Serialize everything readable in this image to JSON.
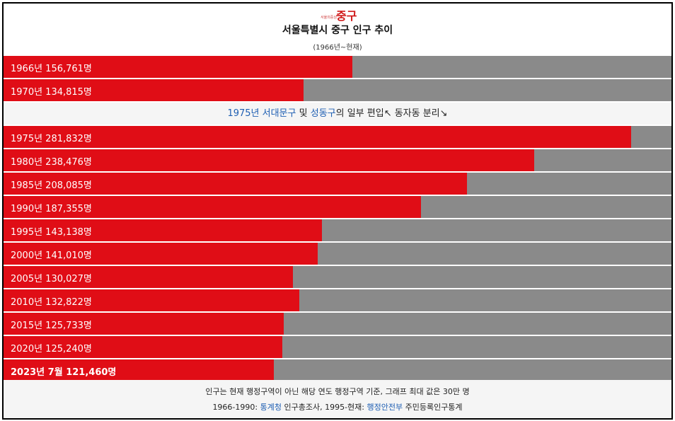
{
  "colors": {
    "bar": "#e00d16",
    "track": "#8a8a8a",
    "link": "#1f5fb3"
  },
  "header": {
    "logo_text": "서울의중심 중구",
    "title": "서울특별시 중구 인구 추이",
    "subtitle": "(1966년~현재)"
  },
  "note": {
    "year": "1975년",
    "link1": "서대문구",
    "mid": "및",
    "link2": "성동구",
    "rest": "의 일부 편입↖ 동자동 분리↘"
  },
  "chart_data": {
    "type": "bar",
    "orientation": "horizontal",
    "xlim": [
      0,
      300000
    ],
    "title": "서울특별시 중구 인구 추이",
    "subtitle": "(1966년~현재)",
    "categories": [
      "1966년",
      "1970년",
      "1975년",
      "1980년",
      "1985년",
      "1990년",
      "1995년",
      "2000년",
      "2005년",
      "2010년",
      "2015년",
      "2020년",
      "2023년 7월"
    ],
    "values": [
      156761,
      134815,
      281832,
      238476,
      208085,
      187355,
      143138,
      141010,
      130027,
      132822,
      125733,
      125240,
      121460
    ],
    "labels": [
      "1966년 156,761명",
      "1970년 134,815명",
      "1975년 281,832명",
      "1980년 238,476명",
      "1985년 208,085명",
      "1990년 187,355명",
      "1995년 143,138명",
      "2000년 141,010명",
      "2005년 130,027명",
      "2010년 132,822명",
      "2015년 125,733명",
      "2020년 125,240명",
      "2023년 7월 121,460명"
    ]
  },
  "footer": {
    "line1": "인구는 현재 행정구역이 아닌 해당 연도 행정구역 기준, 그래프 최대 값은 30만 명",
    "l2_a": "1966-1990: ",
    "l2_link1": "통계청",
    "l2_b": " 인구총조사, 1995-현재: ",
    "l2_link2": "행정안전부",
    "l2_c": " 주민등록인구통계"
  }
}
